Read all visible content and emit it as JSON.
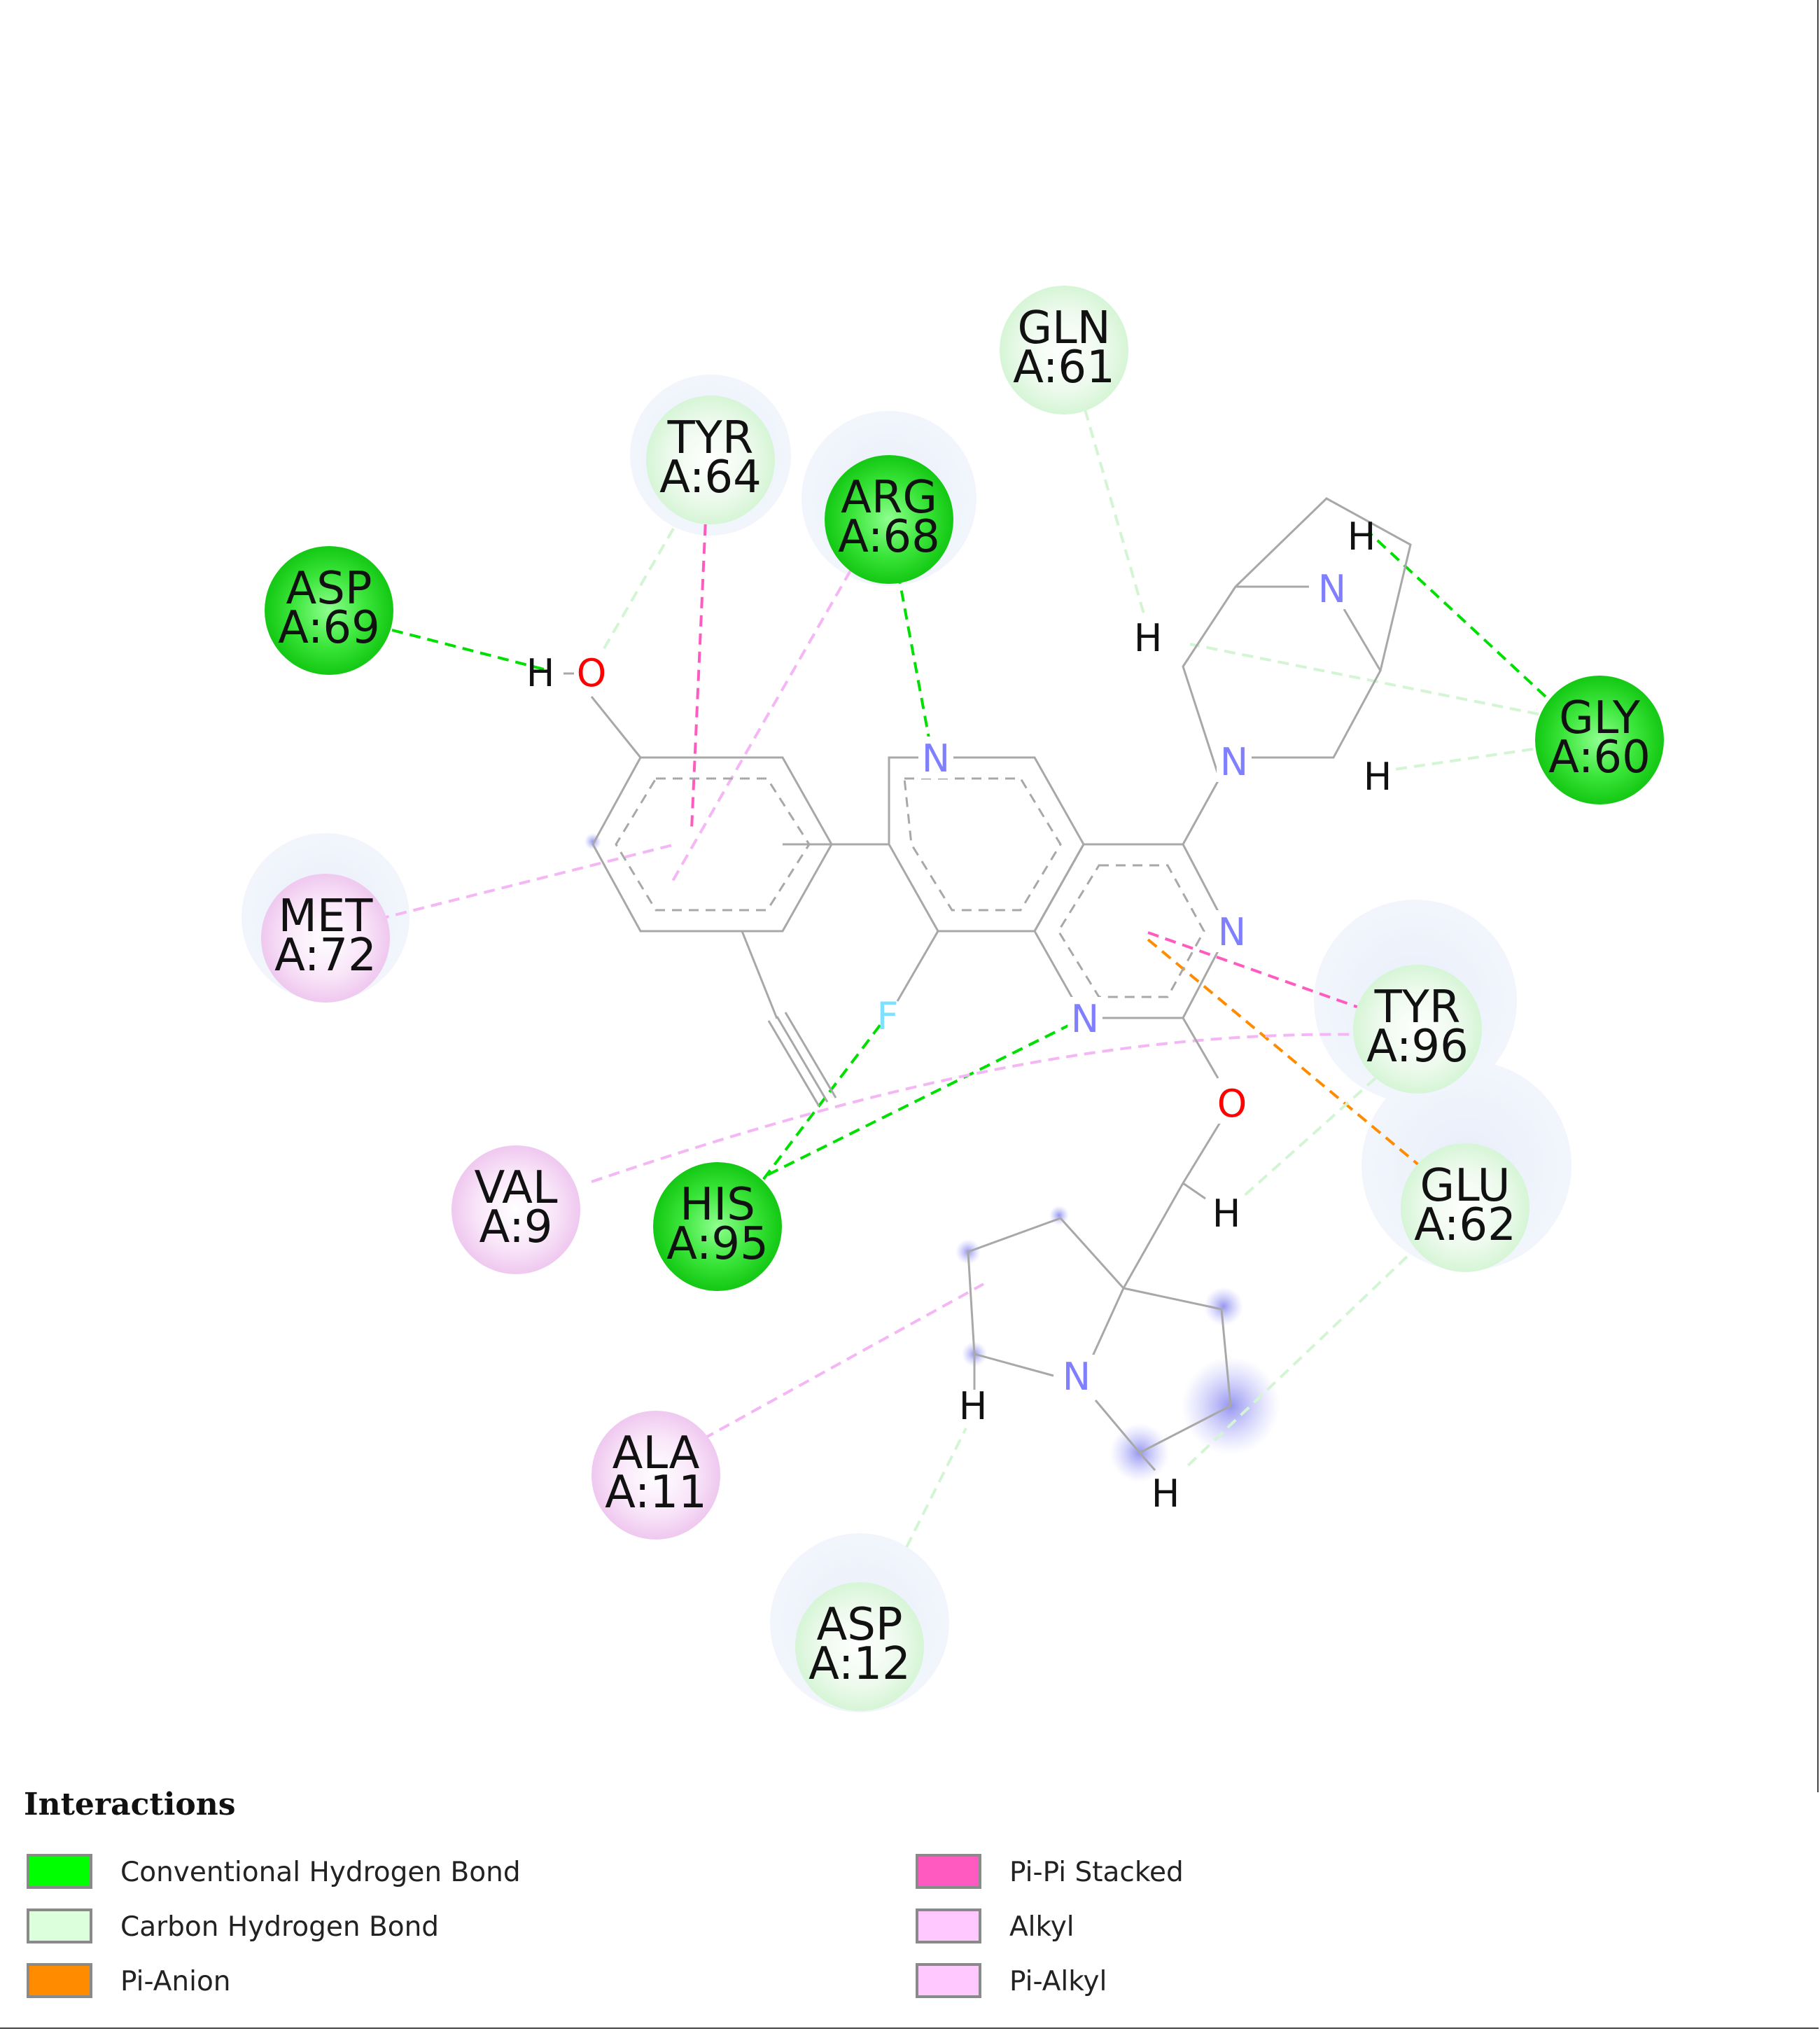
{
  "legend": {
    "title": "Interactions",
    "items": [
      {
        "label": "Conventional Hydrogen Bond",
        "color": "#00ff00"
      },
      {
        "label": "Carbon Hydrogen Bond",
        "color": "#dcffdc"
      },
      {
        "label": "Pi-Anion",
        "color": "#ff8c00"
      },
      {
        "label": "Pi-Pi Stacked",
        "color": "#ff5ac0"
      },
      {
        "label": "Alkyl",
        "color": "#ffc8ff"
      },
      {
        "label": "Pi-Alkyl",
        "color": "#ffc8ff"
      }
    ]
  },
  "residues": [
    {
      "id": "gln61",
      "name": "GLN",
      "num": "A:61",
      "type": "carbon-hbond"
    },
    {
      "id": "tyr64",
      "name": "TYR",
      "num": "A:64",
      "type": "carbon-hbond"
    },
    {
      "id": "arg68",
      "name": "ARG",
      "num": "A:68",
      "type": "conventional-hbond"
    },
    {
      "id": "asp69",
      "name": "ASP",
      "num": "A:69",
      "type": "conventional-hbond"
    },
    {
      "id": "gly60",
      "name": "GLY",
      "num": "A:60",
      "type": "conventional-hbond"
    },
    {
      "id": "met72",
      "name": "MET",
      "num": "A:72",
      "type": "alkyl"
    },
    {
      "id": "tyr96",
      "name": "TYR",
      "num": "A:96",
      "type": "carbon-hbond"
    },
    {
      "id": "glu62",
      "name": "GLU",
      "num": "A:62",
      "type": "carbon-hbond"
    },
    {
      "id": "val9",
      "name": "VAL",
      "num": "A:9",
      "type": "alkyl"
    },
    {
      "id": "his95",
      "name": "HIS",
      "num": "A:95",
      "type": "conventional-hbond"
    },
    {
      "id": "ala11",
      "name": "ALA",
      "num": "A:11",
      "type": "alkyl"
    },
    {
      "id": "asp12",
      "name": "ASP",
      "num": "A:12",
      "type": "carbon-hbond"
    }
  ],
  "atom_labels": {
    "o1": "O",
    "h_o1": "H",
    "n_py": "N",
    "f": "F",
    "n_pm1": "N",
    "n_pm2": "N",
    "n_bicyclo": "N",
    "n_bridge": "N",
    "o2": "O",
    "n_pyrr": "N",
    "h_bridge": "H",
    "h_pip": "H",
    "h_pip2": "H",
    "h_ch2": "H",
    "h_pyrr1": "H",
    "h_pyrr2": "H"
  },
  "colors": {
    "conventional": "#00e000",
    "carbon": "#dcffdc",
    "pi_anion": "#ff8c00",
    "pi_pi": "#ff5ac0",
    "alkyl": "#f0b0f0",
    "nitrogen": "#8080ff",
    "oxygen": "#ff0000",
    "fluorine": "#7fe0ff",
    "bond": "#a0a0a0"
  }
}
